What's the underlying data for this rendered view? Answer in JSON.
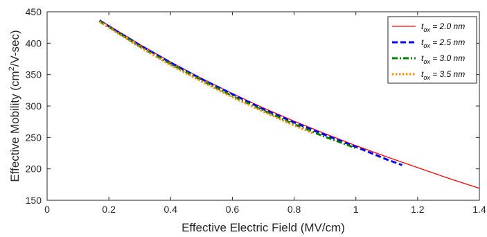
{
  "chart_data": {
    "type": "line",
    "title": "",
    "xlabel": "Effective Electric Field (MV/cm)",
    "ylabel_parts": [
      "Effective Mobility (cm",
      "2",
      "/V-sec)"
    ],
    "xlim": [
      0,
      1.4
    ],
    "ylim": [
      150,
      450
    ],
    "x_ticks": [
      0,
      0.2,
      0.4,
      0.6,
      0.8,
      1,
      1.2,
      1.4
    ],
    "x_tick_labels": [
      "0",
      "0.2",
      "0.4",
      "0.6",
      "0.8",
      "1",
      "1.2",
      "1.4"
    ],
    "y_ticks": [
      150,
      200,
      250,
      300,
      350,
      400,
      450
    ],
    "y_tick_labels": [
      "150",
      "200",
      "250",
      "300",
      "350",
      "400",
      "450"
    ],
    "grid": false,
    "legend_placement": "top-right",
    "series": [
      {
        "name_prefix": "t",
        "name_sub": "ox",
        "name_suffix": " = 2.0 nm",
        "color": "#ff0000",
        "style": "solid",
        "x": [
          0.17,
          0.2,
          0.3,
          0.4,
          0.5,
          0.6,
          0.7,
          0.8,
          0.9,
          1.0,
          1.1,
          1.2,
          1.3,
          1.4
        ],
        "y": [
          437,
          428,
          398,
          370,
          344,
          320,
          297,
          276,
          256,
          237,
          219,
          202,
          185,
          169
        ]
      },
      {
        "name_prefix": "t",
        "name_sub": "ox",
        "name_suffix": " = 2.5 nm",
        "color": "#0000ff",
        "style": "dashed",
        "x": [
          0.17,
          0.2,
          0.3,
          0.4,
          0.5,
          0.6,
          0.7,
          0.8,
          0.9,
          1.0,
          1.1,
          1.15
        ],
        "y": [
          436,
          427,
          397,
          369,
          343,
          319,
          295,
          274,
          254,
          235,
          215,
          206
        ]
      },
      {
        "name_prefix": "t",
        "name_sub": "ox",
        "name_suffix": " = 3.0 nm",
        "color": "#008000",
        "style": "dashdot",
        "x": [
          0.17,
          0.2,
          0.3,
          0.4,
          0.5,
          0.6,
          0.7,
          0.8,
          0.9,
          1.0
        ],
        "y": [
          435,
          426,
          395,
          367,
          341,
          316,
          293,
          271,
          251,
          233
        ]
      },
      {
        "name_prefix": "t",
        "name_sub": "ox",
        "name_suffix": " = 3.5 nm",
        "color": "#ff8c00",
        "style": "dotted",
        "x": [
          0.17,
          0.2,
          0.3,
          0.4,
          0.5,
          0.6,
          0.7,
          0.8,
          0.86
        ],
        "y": [
          434,
          425,
          394,
          365,
          339,
          314,
          291,
          269,
          257
        ]
      }
    ]
  }
}
